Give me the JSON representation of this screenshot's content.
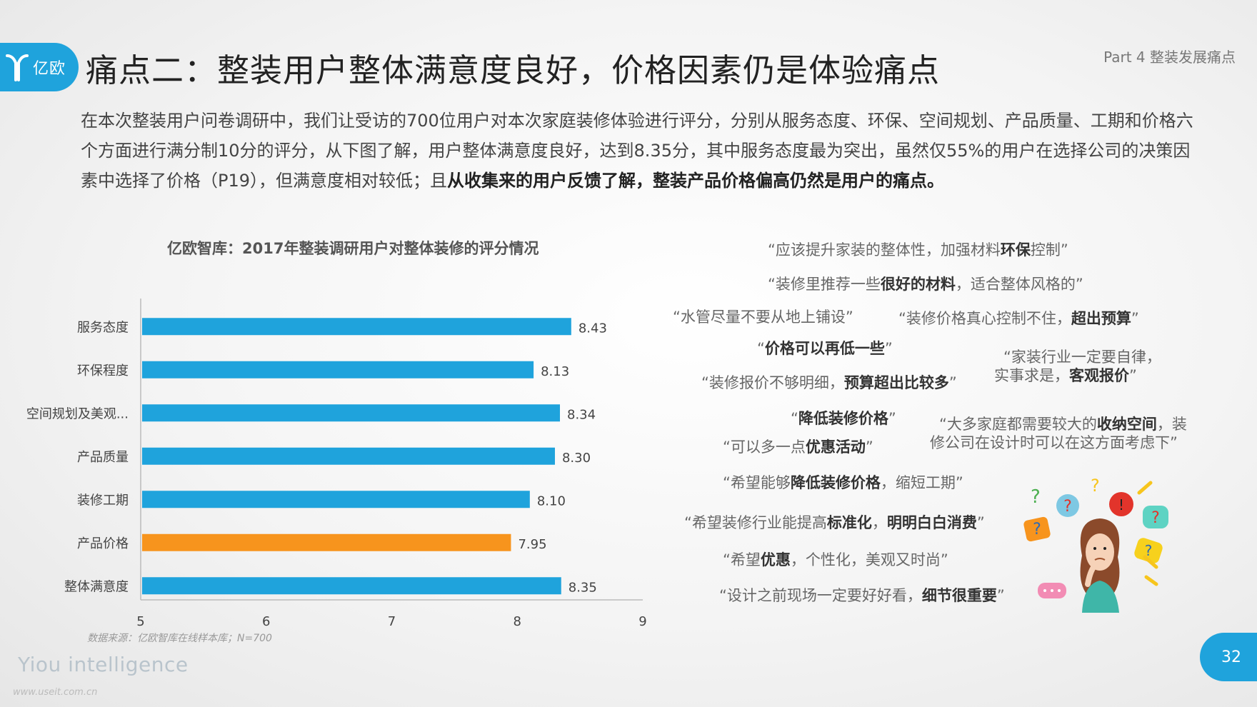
{
  "header": {
    "logo_text": "亿欧",
    "title": "痛点二：整装用户整体满意度良好，价格因素仍是体验痛点",
    "part_label": "Part 4 整装发展痛点"
  },
  "intro": {
    "plain": "在本次整装用户问卷调研中，我们让受访的700位用户对本次家庭装修体验进行评分，分别从服务态度、环保、空间规划、产品质量、工期和价格六个方面进行满分制10分的评分，从下图了解，用户整体满意度良好，达到8.35分，其中服务态度最为突出，虽然仅55%的用户在选择公司的决策因素中选择了价格（P19），但满意度相对较低；且",
    "bold": "从收集来的用户反馈了解，整装产品价格偏高仍然是用户的痛点。"
  },
  "chart_data": {
    "type": "bar",
    "orientation": "horizontal",
    "title": "亿欧智库：2017年整装调研用户对整体装修的评分情况",
    "categories": [
      "服务态度",
      "环保程度",
      "空间规划及美观...",
      "产品质量",
      "装修工期",
      "产品价格",
      "整体满意度"
    ],
    "values": [
      8.43,
      8.13,
      8.34,
      8.3,
      8.1,
      7.95,
      8.35
    ],
    "value_labels": [
      "8.43",
      "8.13",
      "8.34",
      "8.30",
      "8.10",
      "7.95",
      "8.35"
    ],
    "highlight_index": 5,
    "xlim": [
      5,
      9
    ],
    "xticks": [
      "5",
      "6",
      "7",
      "8",
      "9"
    ],
    "colors": {
      "default": "#1fa3dc",
      "highlight": "#f7941d"
    },
    "xlabel": "",
    "ylabel": ""
  },
  "source_note": "数据来源：亿欧智库在线样本库；N=700",
  "quotes": [
    [
      {
        "t": "“应该提升家装的整体性，加强材料"
      },
      {
        "t": "环保",
        "b": true
      },
      {
        "t": "控制”"
      }
    ],
    [
      {
        "t": "“装修里推荐一些"
      },
      {
        "t": "很好的材料",
        "b": true
      },
      {
        "t": "，适合整体风格的”"
      }
    ],
    [
      {
        "t": "“水管尽量不要从地上铺设”"
      }
    ],
    [
      {
        "t": "“装修价格真心控制不住，"
      },
      {
        "t": "超出预算",
        "b": true
      },
      {
        "t": "”"
      }
    ],
    [
      {
        "t": "“"
      },
      {
        "t": "价格可以再低一些",
        "b": true
      },
      {
        "t": "”"
      }
    ],
    [
      {
        "t": "“家装行业一定要自律，"
      }
    ],
    [
      {
        "t": "实事求是，"
      },
      {
        "t": "客观报价",
        "b": true
      },
      {
        "t": "”"
      }
    ],
    [
      {
        "t": "“装修报价不够明细，"
      },
      {
        "t": "预算超出比较多",
        "b": true
      },
      {
        "t": "”"
      }
    ],
    [
      {
        "t": "“"
      },
      {
        "t": "降低装修价格",
        "b": true
      },
      {
        "t": "”"
      }
    ],
    [
      {
        "t": "“大多家庭都需要较大的"
      },
      {
        "t": "收纳空间",
        "b": true
      },
      {
        "t": "，装"
      }
    ],
    [
      {
        "t": "修公司在设计时可以在这方面考虑下”"
      }
    ],
    [
      {
        "t": "“可以多一点"
      },
      {
        "t": "优惠活动",
        "b": true
      },
      {
        "t": "”"
      }
    ],
    [
      {
        "t": "“希望能够"
      },
      {
        "t": "降低装修价格",
        "b": true
      },
      {
        "t": "，缩短工期”"
      }
    ],
    [
      {
        "t": "“希望装修行业能提高"
      },
      {
        "t": "标准化",
        "b": true
      },
      {
        "t": "，"
      },
      {
        "t": "明明白白消费",
        "b": true
      },
      {
        "t": "”"
      }
    ],
    [
      {
        "t": "“希望"
      },
      {
        "t": "优惠",
        "b": true
      },
      {
        "t": "，个性化，美观又时尚”"
      }
    ],
    [
      {
        "t": "“设计之前现场一定要好好看，"
      },
      {
        "t": "细节很重要",
        "b": true
      },
      {
        "t": "”"
      }
    ]
  ],
  "footer": {
    "brand": "Yiou intelligence",
    "watermark": "www.useit.com.cn",
    "page_number": "32"
  }
}
